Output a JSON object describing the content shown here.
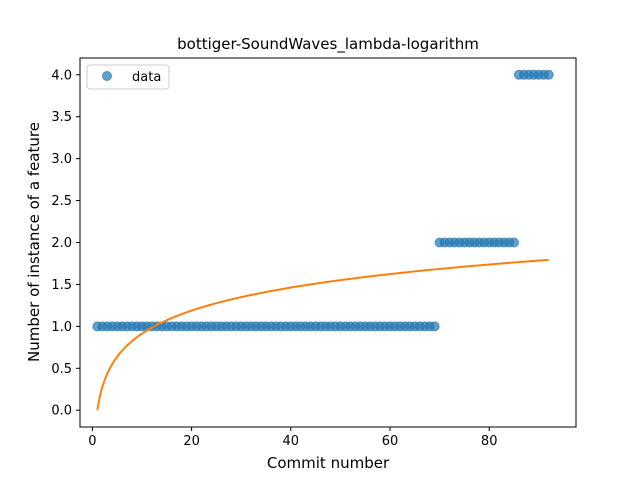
{
  "chart_data": {
    "type": "scatter",
    "title": "bottiger-SoundWaves_lambda-logarithm",
    "xlabel": "Commit number",
    "ylabel": "Number of instance of a feature",
    "xlim": [
      -2.5,
      97.5
    ],
    "ylim": [
      -0.2,
      4.2
    ],
    "xticks": [
      0,
      20,
      40,
      60,
      80
    ],
    "xtick_labels": [
      "0",
      "20",
      "40",
      "60",
      "80"
    ],
    "yticks": [
      0.0,
      0.5,
      1.0,
      1.5,
      2.0,
      2.5,
      3.0,
      3.5,
      4.0
    ],
    "ytick_labels": [
      "0.0",
      "0.5",
      "1.0",
      "1.5",
      "2.0",
      "2.5",
      "3.0",
      "3.5",
      "4.0"
    ],
    "grid": false,
    "legend_position": "top-left",
    "series": [
      {
        "name": "data",
        "kind": "scatter",
        "color": "#1f77b4",
        "segments": [
          {
            "x_start": 1,
            "x_end": 69,
            "y": 1
          },
          {
            "x_start": 70,
            "x_end": 85,
            "y": 2
          },
          {
            "x_start": 86,
            "x_end": 92,
            "y": 4
          }
        ]
      },
      {
        "kind": "line",
        "color": "#ff7f0e",
        "model": "y = a*ln(x)",
        "a": 0.3965,
        "x_range": [
          1,
          92
        ]
      }
    ]
  }
}
